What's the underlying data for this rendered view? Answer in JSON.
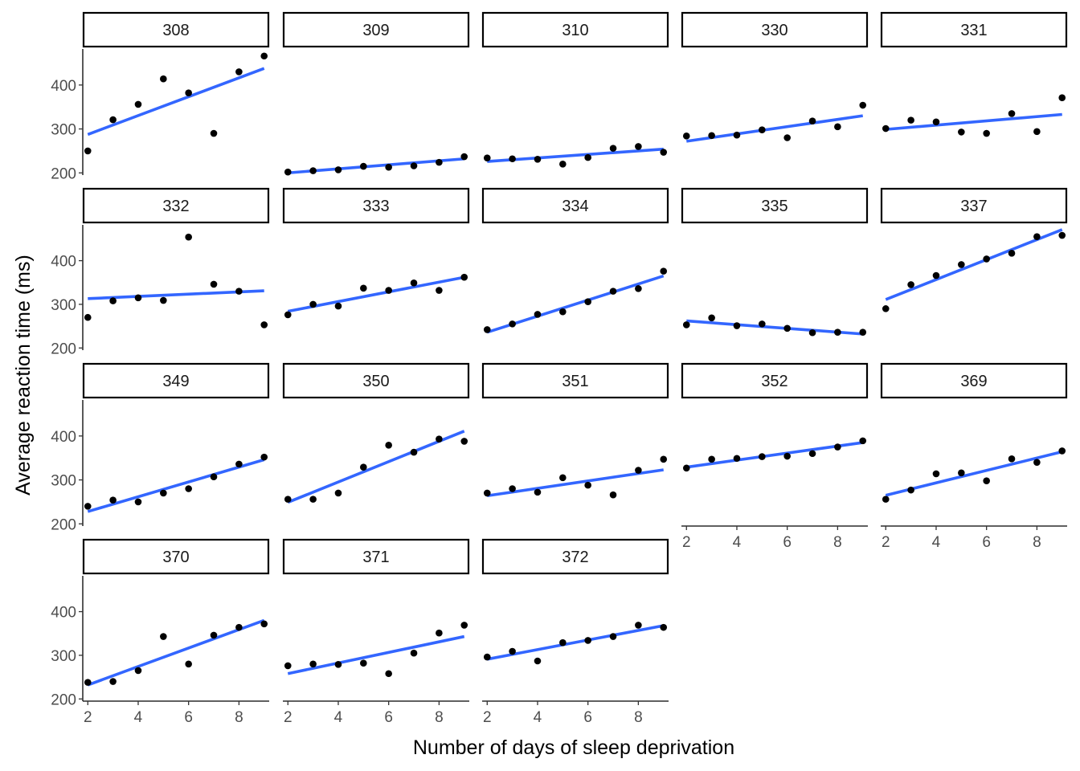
{
  "chart_data": {
    "type": "scatter",
    "title": "",
    "xlabel": "Number of days of sleep deprivation",
    "ylabel": "Average reaction time (ms)",
    "xlim": [
      1.8,
      9.2
    ],
    "ylim": [
      195,
      482
    ],
    "x_ticks": [
      2,
      4,
      6,
      8
    ],
    "y_ticks": [
      200,
      300,
      400
    ],
    "point_color": "#000000",
    "line_color": "#3366FF",
    "facets": [
      {
        "label": "308",
        "x": [
          2,
          3,
          4,
          5,
          6,
          7,
          8,
          9
        ],
        "y": [
          250,
          321,
          356,
          414,
          382,
          290,
          430,
          466
        ],
        "fit": [
          287.5,
          437.8
        ]
      },
      {
        "label": "309",
        "x": [
          2,
          3,
          4,
          5,
          6,
          7,
          8,
          9
        ],
        "y": [
          202,
          205,
          207,
          215,
          213,
          216,
          224,
          237
        ],
        "fit": [
          200,
          232
        ]
      },
      {
        "label": "310",
        "x": [
          2,
          3,
          4,
          5,
          6,
          7,
          8,
          9
        ],
        "y": [
          234,
          232,
          231,
          220,
          235,
          256,
          260,
          247
        ],
        "fit": [
          226,
          254
        ]
      },
      {
        "label": "330",
        "x": [
          2,
          3,
          4,
          5,
          6,
          7,
          8,
          9
        ],
        "y": [
          284,
          285,
          286,
          298,
          280,
          318,
          305,
          354
        ],
        "fit": [
          272,
          330
        ]
      },
      {
        "label": "331",
        "x": [
          2,
          3,
          4,
          5,
          6,
          7,
          8,
          9
        ],
        "y": [
          301,
          320,
          316,
          293,
          290,
          335,
          294,
          371
        ],
        "fit": [
          299,
          333
        ]
      },
      {
        "label": "332",
        "x": [
          2,
          3,
          4,
          5,
          6,
          7,
          8,
          9
        ],
        "y": [
          270,
          308,
          315,
          309,
          454,
          346,
          330,
          253
        ],
        "fit": [
          313,
          331
        ]
      },
      {
        "label": "333",
        "x": [
          2,
          3,
          4,
          5,
          6,
          7,
          8,
          9
        ],
        "y": [
          276,
          300,
          296,
          337,
          332,
          349,
          332,
          362
        ],
        "fit": [
          284,
          362
        ]
      },
      {
        "label": "334",
        "x": [
          2,
          3,
          4,
          5,
          6,
          7,
          8,
          9
        ],
        "y": [
          242,
          255,
          277,
          283,
          306,
          330,
          336,
          376
        ],
        "fit": [
          236,
          365
        ]
      },
      {
        "label": "335",
        "x": [
          2,
          3,
          4,
          5,
          6,
          7,
          8,
          9
        ],
        "y": [
          253,
          269,
          251,
          255,
          245,
          235,
          236,
          236
        ],
        "fit": [
          262,
          232
        ]
      },
      {
        "label": "337",
        "x": [
          2,
          3,
          4,
          5,
          6,
          7,
          8,
          9
        ],
        "y": [
          290,
          345,
          366,
          391,
          404,
          417,
          455,
          458
        ],
        "fit": [
          311,
          471
        ]
      },
      {
        "label": "349",
        "x": [
          2,
          3,
          4,
          5,
          6,
          7,
          8,
          9
        ],
        "y": [
          240,
          254,
          250,
          270,
          280,
          307,
          336,
          352
        ],
        "fit": [
          228,
          346
        ]
      },
      {
        "label": "350",
        "x": [
          2,
          3,
          4,
          5,
          6,
          7,
          8,
          9
        ],
        "y": [
          256,
          256,
          270,
          329,
          379,
          363,
          393,
          388
        ],
        "fit": [
          249,
          411
        ]
      },
      {
        "label": "351",
        "x": [
          2,
          3,
          4,
          5,
          6,
          7,
          8,
          9
        ],
        "y": [
          270,
          280,
          272,
          305,
          288,
          266,
          322,
          347
        ],
        "fit": [
          264,
          323
        ]
      },
      {
        "label": "352",
        "x": [
          2,
          3,
          4,
          5,
          6,
          7,
          8,
          9
        ],
        "y": [
          327,
          347,
          349,
          353,
          354,
          360,
          375,
          389
        ],
        "fit": [
          329,
          385
        ]
      },
      {
        "label": "369",
        "x": [
          2,
          3,
          4,
          5,
          6,
          7,
          8,
          9
        ],
        "y": [
          256,
          277,
          314,
          316,
          298,
          348,
          340,
          366
        ],
        "fit": [
          265,
          364
        ]
      },
      {
        "label": "370",
        "x": [
          2,
          3,
          4,
          5,
          6,
          7,
          8,
          9
        ],
        "y": [
          238,
          240,
          265,
          343,
          280,
          346,
          364,
          372
        ],
        "fit": [
          232,
          380
        ]
      },
      {
        "label": "371",
        "x": [
          2,
          3,
          4,
          5,
          6,
          7,
          8,
          9
        ],
        "y": [
          276,
          280,
          279,
          282,
          258,
          305,
          351,
          369
        ],
        "fit": [
          258,
          343
        ]
      },
      {
        "label": "372",
        "x": [
          2,
          3,
          4,
          5,
          6,
          7,
          8,
          9
        ],
        "y": [
          296,
          309,
          287,
          329,
          334,
          343,
          369,
          364
        ],
        "fit": [
          291,
          368
        ]
      }
    ]
  }
}
